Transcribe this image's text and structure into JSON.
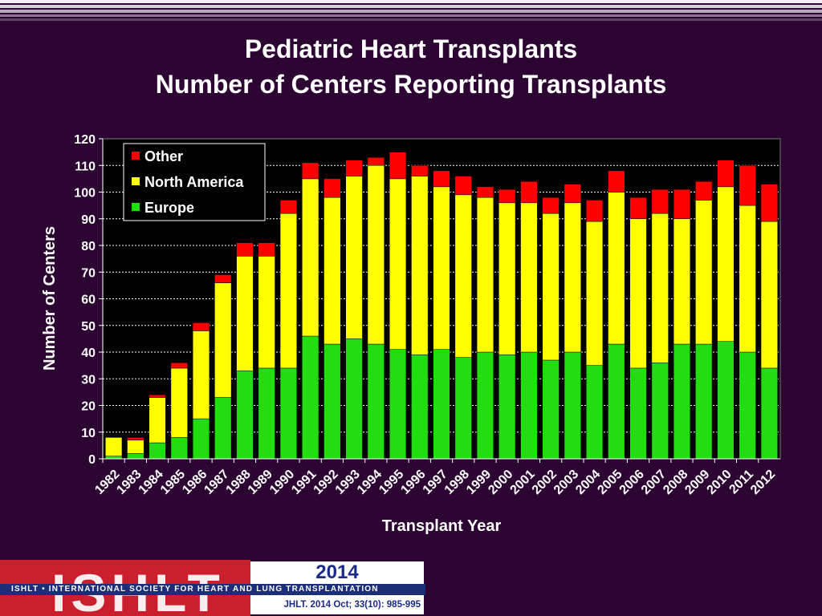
{
  "colors": {
    "background": "#2d0533",
    "plot_background": "#000000",
    "europe": "#22dd10",
    "north_america": "#ffff00",
    "other": "#ff0000",
    "logo_red": "#cc1f2e",
    "logo_blue": "#1c2e78"
  },
  "slide": {
    "title_line1": "Pediatric Heart Transplants",
    "title_line2": "Number of Centers Reporting Transplants"
  },
  "footer": {
    "logo_text": "ISHLT",
    "year": "2014",
    "org_name": "ISHLT • INTERNATIONAL SOCIETY FOR HEART AND LUNG TRANSPLANTATION",
    "citation": "JHLT. 2014 Oct; 33(10): 985-995"
  },
  "chart_data": {
    "type": "bar",
    "stacked": true,
    "title": "",
    "xlabel": "Transplant Year",
    "ylabel": "Number of Centers",
    "ylim": [
      0,
      120
    ],
    "yticks": [
      0,
      10,
      20,
      30,
      40,
      50,
      60,
      70,
      80,
      90,
      100,
      110,
      120
    ],
    "grid": true,
    "legend_position": "top-left",
    "categories": [
      "1982",
      "1983",
      "1984",
      "1985",
      "1986",
      "1987",
      "1988",
      "1989",
      "1990",
      "1991",
      "1992",
      "1993",
      "1994",
      "1995",
      "1996",
      "1997",
      "1998",
      "1999",
      "2000",
      "2001",
      "2002",
      "2003",
      "2004",
      "2005",
      "2006",
      "2007",
      "2008",
      "2009",
      "2010",
      "2011",
      "2012"
    ],
    "series": [
      {
        "name": "Europe",
        "color": "#22dd10",
        "values": [
          1,
          2,
          6,
          8,
          15,
          23,
          33,
          34,
          34,
          46,
          43,
          45,
          43,
          41,
          39,
          41,
          38,
          40,
          39,
          40,
          37,
          40,
          35,
          43,
          34,
          36,
          43,
          43,
          44,
          40,
          34
        ]
      },
      {
        "name": "North America",
        "color": "#ffff00",
        "values": [
          7,
          5,
          17,
          26,
          33,
          43,
          43,
          42,
          58,
          59,
          55,
          61,
          67,
          64,
          67,
          61,
          61,
          58,
          57,
          56,
          55,
          56,
          54,
          57,
          56,
          56,
          47,
          54,
          58,
          55,
          55
        ]
      },
      {
        "name": "Other",
        "color": "#ff0000",
        "values": [
          0,
          1,
          1,
          2,
          3,
          3,
          5,
          5,
          5,
          6,
          7,
          6,
          3,
          10,
          4,
          6,
          7,
          4,
          5,
          8,
          6,
          7,
          8,
          8,
          8,
          9,
          11,
          7,
          10,
          15,
          14
        ]
      }
    ],
    "legend_order": [
      "Other",
      "North America",
      "Europe"
    ]
  }
}
